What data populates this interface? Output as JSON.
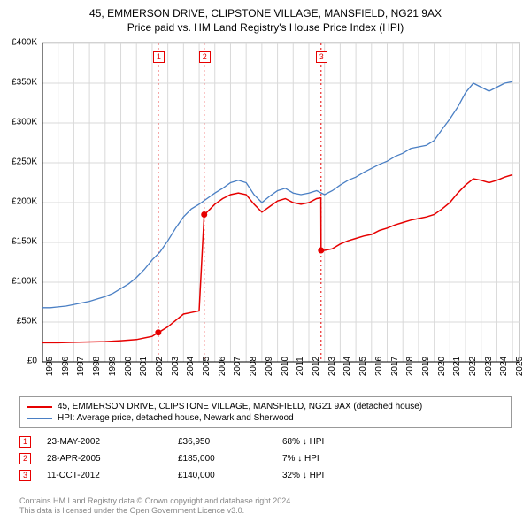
{
  "title": {
    "line1": "45, EMMERSON DRIVE, CLIPSTONE VILLAGE, MANSFIELD, NG21 9AX",
    "line2": "Price paid vs. HM Land Registry's House Price Index (HPI)"
  },
  "chart": {
    "type": "line",
    "background_color": "#ffffff",
    "grid_color": "#d9d9d9",
    "axis_color": "#000000",
    "tick_fontsize": 10,
    "x": {
      "min": 1995,
      "max": 2025.5,
      "ticks": [
        1995,
        1996,
        1997,
        1998,
        1999,
        2000,
        2001,
        2002,
        2003,
        2004,
        2005,
        2006,
        2007,
        2008,
        2009,
        2010,
        2011,
        2012,
        2013,
        2014,
        2015,
        2016,
        2017,
        2018,
        2019,
        2020,
        2021,
        2022,
        2023,
        2024,
        2025
      ]
    },
    "y": {
      "min": 0,
      "max": 400000,
      "ticks": [
        {
          "v": 0,
          "label": "£0"
        },
        {
          "v": 50000,
          "label": "£50K"
        },
        {
          "v": 100000,
          "label": "£100K"
        },
        {
          "v": 150000,
          "label": "£150K"
        },
        {
          "v": 200000,
          "label": "£200K"
        },
        {
          "v": 250000,
          "label": "£250K"
        },
        {
          "v": 300000,
          "label": "£300K"
        },
        {
          "v": 350000,
          "label": "£350K"
        },
        {
          "v": 400000,
          "label": "£400K"
        }
      ]
    },
    "event_markers": [
      {
        "n": "1",
        "x": 2002.39
      },
      {
        "n": "2",
        "x": 2005.32
      },
      {
        "n": "3",
        "x": 2012.78
      }
    ],
    "event_line_color": "#e60000",
    "event_line_dash": "2,3",
    "series": [
      {
        "name": "property",
        "label": "45, EMMERSON DRIVE, CLIPSTONE VILLAGE, MANSFIELD, NG21 9AX (detached house)",
        "color": "#e60000",
        "line_width": 1.5,
        "sale_dot_radius": 3.5,
        "data": [
          [
            1995.0,
            24000
          ],
          [
            1996.0,
            24000
          ],
          [
            1997.0,
            24500
          ],
          [
            1998.0,
            25000
          ],
          [
            1999.0,
            25500
          ],
          [
            2000.0,
            26500
          ],
          [
            2001.0,
            28000
          ],
          [
            2002.0,
            32000
          ],
          [
            2002.39,
            36950
          ],
          [
            2002.5,
            38000
          ],
          [
            2003.0,
            44000
          ],
          [
            2003.5,
            52000
          ],
          [
            2004.0,
            60000
          ],
          [
            2004.5,
            62000
          ],
          [
            2005.0,
            64000
          ],
          [
            2005.32,
            185000
          ],
          [
            2005.5,
            188000
          ],
          [
            2006.0,
            198000
          ],
          [
            2006.5,
            205000
          ],
          [
            2007.0,
            210000
          ],
          [
            2007.5,
            212000
          ],
          [
            2008.0,
            210000
          ],
          [
            2008.5,
            198000
          ],
          [
            2009.0,
            188000
          ],
          [
            2009.5,
            195000
          ],
          [
            2010.0,
            202000
          ],
          [
            2010.5,
            205000
          ],
          [
            2011.0,
            200000
          ],
          [
            2011.5,
            198000
          ],
          [
            2012.0,
            200000
          ],
          [
            2012.5,
            205000
          ],
          [
            2012.77,
            206000
          ],
          [
            2012.78,
            140000
          ],
          [
            2013.0,
            140000
          ],
          [
            2013.5,
            142000
          ],
          [
            2014.0,
            148000
          ],
          [
            2014.5,
            152000
          ],
          [
            2015.0,
            155000
          ],
          [
            2015.5,
            158000
          ],
          [
            2016.0,
            160000
          ],
          [
            2016.5,
            165000
          ],
          [
            2017.0,
            168000
          ],
          [
            2017.5,
            172000
          ],
          [
            2018.0,
            175000
          ],
          [
            2018.5,
            178000
          ],
          [
            2019.0,
            180000
          ],
          [
            2019.5,
            182000
          ],
          [
            2020.0,
            185000
          ],
          [
            2020.5,
            192000
          ],
          [
            2021.0,
            200000
          ],
          [
            2021.5,
            212000
          ],
          [
            2022.0,
            222000
          ],
          [
            2022.5,
            230000
          ],
          [
            2023.0,
            228000
          ],
          [
            2023.5,
            225000
          ],
          [
            2024.0,
            228000
          ],
          [
            2024.5,
            232000
          ],
          [
            2025.0,
            235000
          ]
        ],
        "sales": [
          [
            2002.39,
            36950
          ],
          [
            2005.32,
            185000
          ],
          [
            2012.78,
            140000
          ]
        ]
      },
      {
        "name": "hpi",
        "label": "HPI: Average price, detached house, Newark and Sherwood",
        "color": "#4a7fc4",
        "line_width": 1.3,
        "data": [
          [
            1995.0,
            68000
          ],
          [
            1995.5,
            68000
          ],
          [
            1996.0,
            69000
          ],
          [
            1996.5,
            70000
          ],
          [
            1997.0,
            72000
          ],
          [
            1997.5,
            74000
          ],
          [
            1998.0,
            76000
          ],
          [
            1998.5,
            79000
          ],
          [
            1999.0,
            82000
          ],
          [
            1999.5,
            86000
          ],
          [
            2000.0,
            92000
          ],
          [
            2000.5,
            98000
          ],
          [
            2001.0,
            106000
          ],
          [
            2001.5,
            116000
          ],
          [
            2002.0,
            128000
          ],
          [
            2002.5,
            138000
          ],
          [
            2003.0,
            152000
          ],
          [
            2003.5,
            168000
          ],
          [
            2004.0,
            182000
          ],
          [
            2004.5,
            192000
          ],
          [
            2005.0,
            198000
          ],
          [
            2005.5,
            205000
          ],
          [
            2006.0,
            212000
          ],
          [
            2006.5,
            218000
          ],
          [
            2007.0,
            225000
          ],
          [
            2007.5,
            228000
          ],
          [
            2008.0,
            225000
          ],
          [
            2008.5,
            210000
          ],
          [
            2009.0,
            200000
          ],
          [
            2009.5,
            208000
          ],
          [
            2010.0,
            215000
          ],
          [
            2010.5,
            218000
          ],
          [
            2011.0,
            212000
          ],
          [
            2011.5,
            210000
          ],
          [
            2012.0,
            212000
          ],
          [
            2012.5,
            215000
          ],
          [
            2013.0,
            210000
          ],
          [
            2013.5,
            215000
          ],
          [
            2014.0,
            222000
          ],
          [
            2014.5,
            228000
          ],
          [
            2015.0,
            232000
          ],
          [
            2015.5,
            238000
          ],
          [
            2016.0,
            243000
          ],
          [
            2016.5,
            248000
          ],
          [
            2017.0,
            252000
          ],
          [
            2017.5,
            258000
          ],
          [
            2018.0,
            262000
          ],
          [
            2018.5,
            268000
          ],
          [
            2019.0,
            270000
          ],
          [
            2019.5,
            272000
          ],
          [
            2020.0,
            278000
          ],
          [
            2020.5,
            292000
          ],
          [
            2021.0,
            305000
          ],
          [
            2021.5,
            320000
          ],
          [
            2022.0,
            338000
          ],
          [
            2022.5,
            350000
          ],
          [
            2023.0,
            345000
          ],
          [
            2023.5,
            340000
          ],
          [
            2024.0,
            345000
          ],
          [
            2024.5,
            350000
          ],
          [
            2025.0,
            352000
          ]
        ]
      }
    ]
  },
  "legend": {
    "border_color": "#999999",
    "fontsize": 10
  },
  "transactions": [
    {
      "n": "1",
      "date": "23-MAY-2002",
      "price": "£36,950",
      "pct": "68% ↓ HPI"
    },
    {
      "n": "2",
      "date": "28-APR-2005",
      "price": "£185,000",
      "pct": "7% ↓ HPI"
    },
    {
      "n": "3",
      "date": "11-OCT-2012",
      "price": "£140,000",
      "pct": "32% ↓ HPI"
    }
  ],
  "footer": {
    "line1": "Contains HM Land Registry data © Crown copyright and database right 2024.",
    "line2": "This data is licensed under the Open Government Licence v3.0.",
    "color": "#888888"
  }
}
